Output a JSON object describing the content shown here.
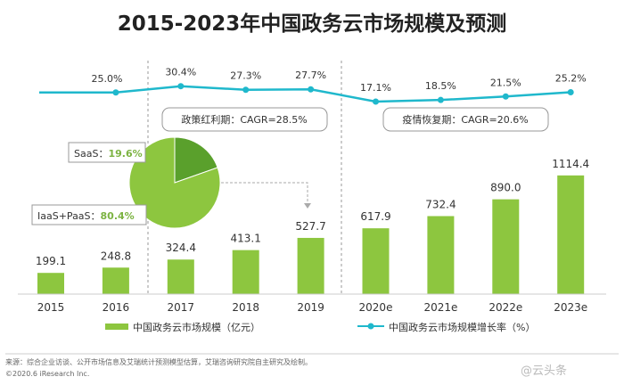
{
  "title": "2015-2023年中国政务云市场规模及预测",
  "chart_data": [
    {
      "type": "bar",
      "categories": [
        "2015",
        "2016",
        "2017",
        "2018",
        "2019",
        "2020e",
        "2021e",
        "2022e",
        "2023e"
      ],
      "series": [
        {
          "name": "中国政务云市场规模（亿元）",
          "values": [
            199.1,
            248.8,
            324.4,
            413.1,
            527.7,
            617.9,
            732.4,
            890.0,
            1114.4
          ],
          "labels": [
            "199.1",
            "248.8",
            "324.4",
            "413.1",
            "527.7",
            "617.9",
            "732.4",
            "890.0",
            "1114.4"
          ]
        }
      ],
      "color": "#8dc63f"
    },
    {
      "type": "line",
      "categories": [
        "2015",
        "2016",
        "2017",
        "2018",
        "2019",
        "2020e",
        "2021e",
        "2022e",
        "2023e"
      ],
      "series": [
        {
          "name": "中国政务云市场规模增长率（%）",
          "values": [
            25.0,
            30.4,
            27.3,
            27.7,
            17.1,
            18.5,
            21.5,
            25.2
          ],
          "labels": [
            "25.0%",
            "30.4%",
            "27.3%",
            "27.7%",
            "17.1%",
            "18.5%",
            "21.5%",
            "25.2%"
          ],
          "x": [
            "2016",
            "2017",
            "2018",
            "2019",
            "2020e",
            "2021e",
            "2022e",
            "2023e"
          ]
        }
      ],
      "color": "#1fb8cc"
    },
    {
      "type": "pie",
      "slices": [
        {
          "label": "SaaS：",
          "value": 19.6,
          "value_label": "19.6%",
          "color": "#5aa02c"
        },
        {
          "label": "IaaS+PaaS：",
          "value": 80.4,
          "value_label": "80.4%",
          "color": "#8dc63f"
        }
      ]
    }
  ],
  "annotations": {
    "policy_box": "政策红利期：CAGR=28.5%",
    "recovery_box": "疫情恢复期：CAGR=20.6%"
  },
  "legend": {
    "bar": "中国政务云市场规模（亿元）",
    "line": "中国政务云市场规模增长率（%）"
  },
  "footer": {
    "source": "来源：综合企业访谈、公开市场信息及艾瑞统计预测模型估算，艾瑞咨询研究院自主研究及绘制。",
    "copyright": "©2020.6 iResearch Inc.",
    "watermark": "@云头条"
  },
  "colors": {
    "bar": "#8dc63f",
    "line": "#1fb8cc",
    "pie_dark": "#5aa02c"
  }
}
